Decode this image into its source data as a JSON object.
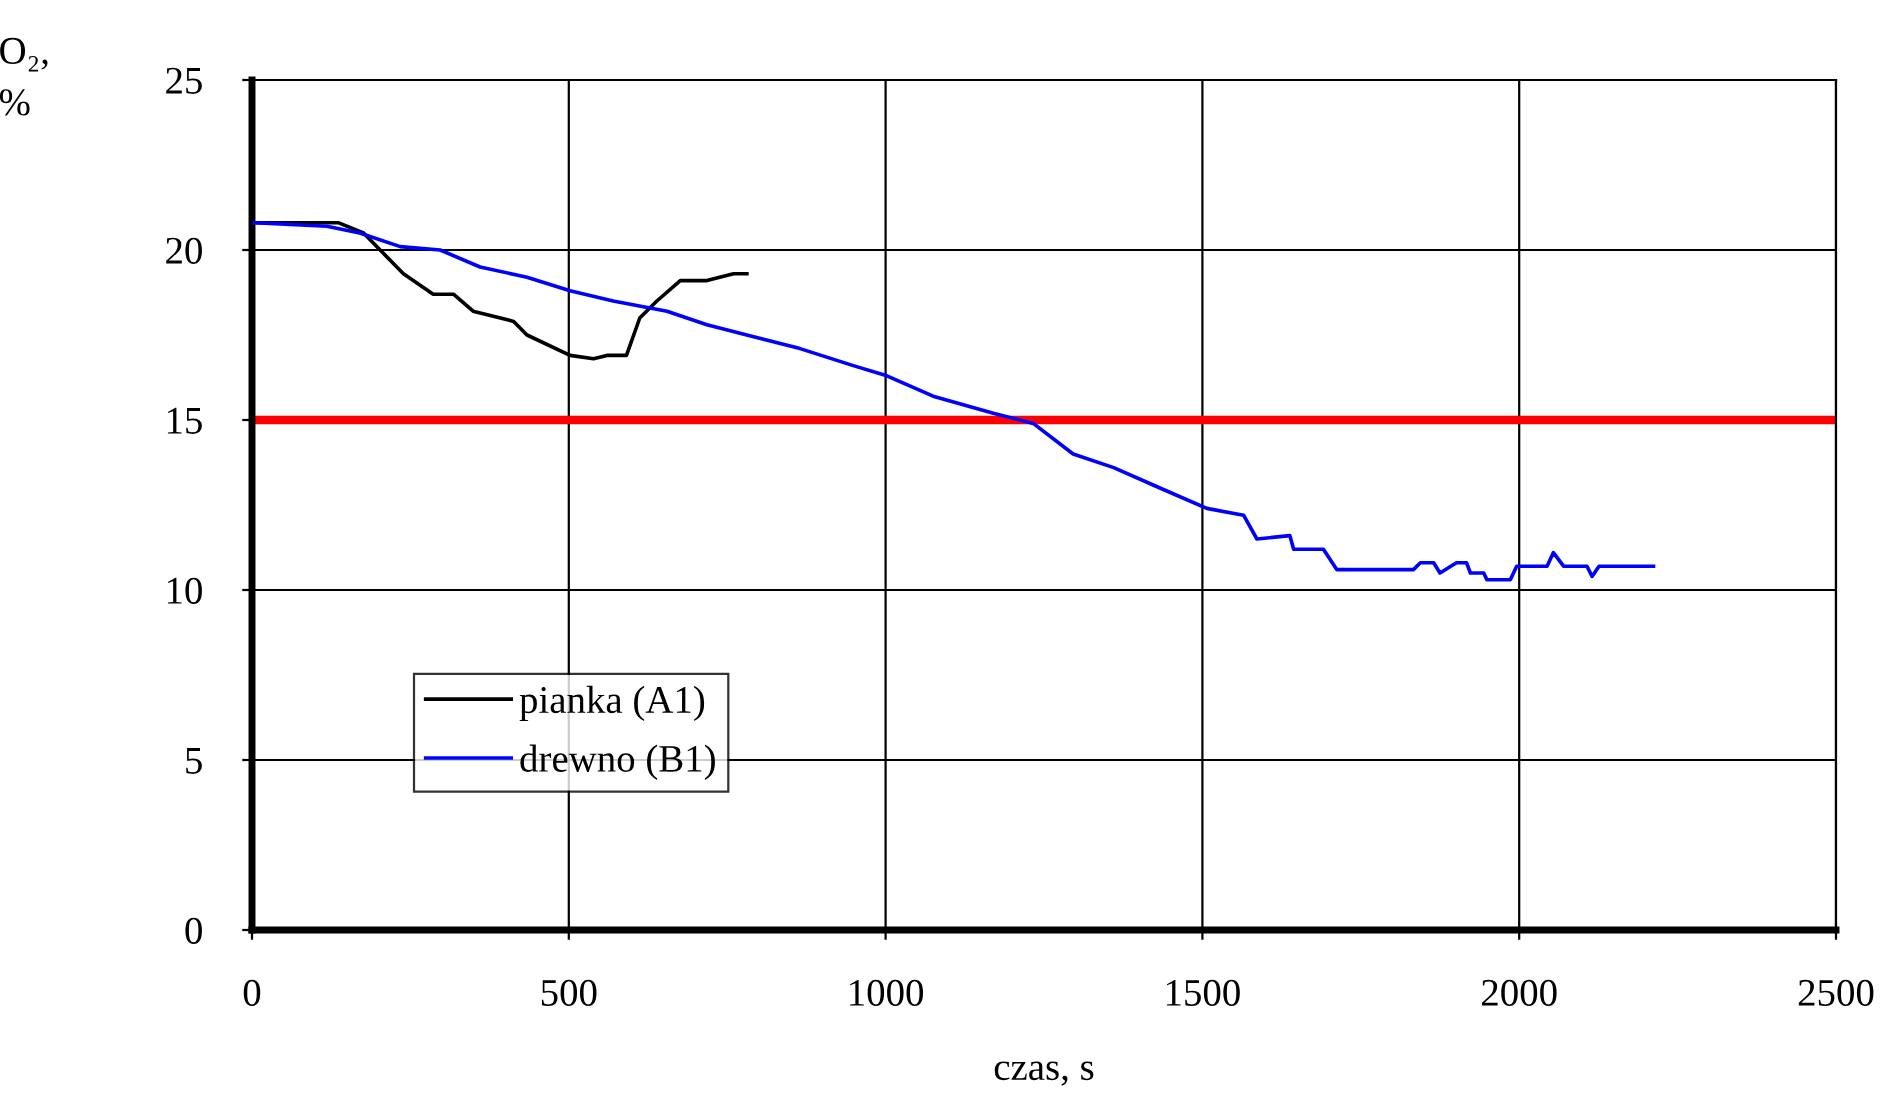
{
  "chart_data": {
    "type": "line",
    "xlabel": "czas, s",
    "ylabel": "O₂,\n%",
    "xlim": [
      0,
      2500
    ],
    "xticks": [
      0,
      500,
      1000,
      1500,
      2000,
      2500
    ],
    "ylim": [
      0,
      25
    ],
    "yticks": [
      0,
      5,
      10,
      15,
      20,
      25
    ],
    "grid": true,
    "legend": "lower left",
    "marker": "none",
    "line_style": "solid",
    "ref_lines": [
      {
        "axis": "y",
        "value": 15,
        "color": "#ff0000"
      }
    ],
    "series": [
      {
        "name": "pianka (A1)",
        "color": "#000000",
        "x": [
          4,
          137,
          176,
          239,
          286,
          318,
          349,
          413,
          434,
          502,
          539,
          560,
          591,
          612,
          639,
          676,
          718,
          760,
          781
        ],
        "values": [
          20.8,
          20.8,
          20.5,
          19.3,
          18.7,
          18.7,
          18.2,
          17.9,
          17.5,
          16.9,
          16.8,
          16.9,
          16.9,
          18.0,
          18.5,
          19.1,
          19.1,
          19.3,
          19.3
        ]
      },
      {
        "name": "drewno (B1)",
        "color": "#0000ff",
        "x": [
          4,
          118,
          170,
          234,
          297,
          360,
          434,
          502,
          570,
          655,
          718,
          781,
          865,
          949,
          1002,
          1075,
          1170,
          1233,
          1296,
          1360,
          1433,
          1507,
          1565,
          1586,
          1638,
          1644,
          1691,
          1712,
          1833,
          1844,
          1865,
          1875,
          1901,
          1917,
          1923,
          1944,
          1949,
          1986,
          1996,
          2044,
          2054,
          2070,
          2107,
          2115,
          2126,
          2212
        ],
        "values": [
          20.8,
          20.7,
          20.5,
          20.1,
          20.0,
          19.5,
          19.2,
          18.8,
          18.5,
          18.2,
          17.8,
          17.5,
          17.1,
          16.6,
          16.3,
          15.7,
          15.2,
          14.9,
          14.0,
          13.6,
          13.0,
          12.4,
          12.2,
          11.5,
          11.6,
          11.2,
          11.2,
          10.6,
          10.6,
          10.8,
          10.8,
          10.5,
          10.8,
          10.8,
          10.5,
          10.5,
          10.3,
          10.3,
          10.7,
          10.7,
          11.1,
          10.7,
          10.7,
          10.4,
          10.7,
          10.7
        ]
      }
    ]
  }
}
